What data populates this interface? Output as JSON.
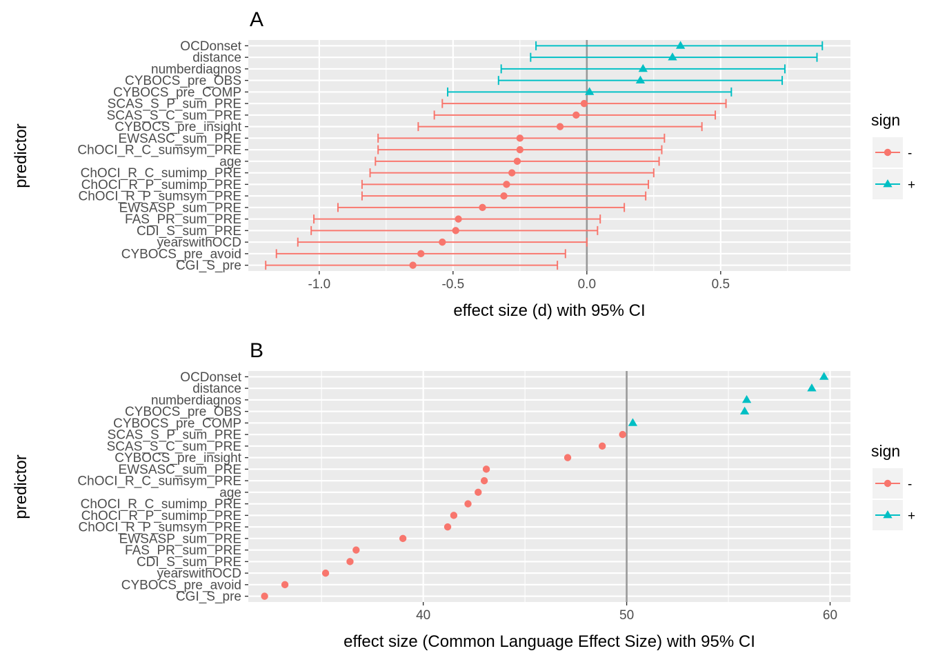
{
  "colors": {
    "negative": "#F8766D",
    "positive": "#00BFC4",
    "panel_bg": "#EBEBEB",
    "grid": "#FFFFFF",
    "zero_line": "#999999",
    "tick_text": "#4D4D4D"
  },
  "predictors": [
    "OCDonset",
    "distance",
    "numberdiagnos",
    "CYBOCS_pre_OBS",
    "CYBOCS_pre_COMP",
    "SCAS_S_P_sum_PRE",
    "SCAS_S_C_sum_PRE",
    "CYBOCS_pre_insight",
    "EWSASC_sum_PRE",
    "ChOCI_R_C_sumsym_PRE",
    "age",
    "ChOCI_R_C_sumimp_PRE",
    "ChOCI_R_P_sumimp_PRE",
    "ChOCI_R_P_sumsym_PRE",
    "EWSASP_sum_PRE",
    "FAS_PR_sum_PRE",
    "CDI_S_sum_PRE",
    "yearswithOCD",
    "CYBOCS_pre_avoid",
    "CGI_S_pre"
  ],
  "chart_data": [
    {
      "type": "scatter",
      "panel": "A",
      "xlabel": "effect size (d) with 95% CI",
      "ylabel": "predictor",
      "xlim": [
        -1.265,
        0.985
      ],
      "xticks": [
        -1.0,
        -0.5,
        0.0,
        0.5
      ],
      "xtick_labels": [
        "-1.0",
        "-0.5",
        "0.0",
        "0.5"
      ],
      "xminor": [
        -0.75,
        -0.25,
        0.25,
        0.75
      ],
      "ref_line": 0,
      "legend": {
        "title": "sign",
        "placement": "right",
        "entries": [
          "-",
          "+"
        ]
      },
      "points": [
        {
          "predictor": "OCDonset",
          "value": 0.35,
          "ci": [
            -0.19,
            0.88
          ],
          "sign": "+"
        },
        {
          "predictor": "distance",
          "value": 0.32,
          "ci": [
            -0.21,
            0.86
          ],
          "sign": "+"
        },
        {
          "predictor": "numberdiagnos",
          "value": 0.21,
          "ci": [
            -0.32,
            0.74
          ],
          "sign": "+"
        },
        {
          "predictor": "CYBOCS_pre_OBS",
          "value": 0.2,
          "ci": [
            -0.33,
            0.73
          ],
          "sign": "+"
        },
        {
          "predictor": "CYBOCS_pre_COMP",
          "value": 0.01,
          "ci": [
            -0.52,
            0.54
          ],
          "sign": "+"
        },
        {
          "predictor": "SCAS_S_P_sum_PRE",
          "value": -0.01,
          "ci": [
            -0.54,
            0.52
          ],
          "sign": "-"
        },
        {
          "predictor": "SCAS_S_C_sum_PRE",
          "value": -0.04,
          "ci": [
            -0.57,
            0.48
          ],
          "sign": "-"
        },
        {
          "predictor": "CYBOCS_pre_insight",
          "value": -0.1,
          "ci": [
            -0.63,
            0.43
          ],
          "sign": "-"
        },
        {
          "predictor": "EWSASC_sum_PRE",
          "value": -0.25,
          "ci": [
            -0.78,
            0.29
          ],
          "sign": "-"
        },
        {
          "predictor": "ChOCI_R_C_sumsym_PRE",
          "value": -0.25,
          "ci": [
            -0.78,
            0.28
          ],
          "sign": "-"
        },
        {
          "predictor": "age",
          "value": -0.26,
          "ci": [
            -0.79,
            0.27
          ],
          "sign": "-"
        },
        {
          "predictor": "ChOCI_R_C_sumimp_PRE",
          "value": -0.28,
          "ci": [
            -0.81,
            0.25
          ],
          "sign": "-"
        },
        {
          "predictor": "ChOCI_R_P_sumimp_PRE",
          "value": -0.3,
          "ci": [
            -0.84,
            0.23
          ],
          "sign": "-"
        },
        {
          "predictor": "ChOCI_R_P_sumsym_PRE",
          "value": -0.31,
          "ci": [
            -0.84,
            0.22
          ],
          "sign": "-"
        },
        {
          "predictor": "EWSASP_sum_PRE",
          "value": -0.39,
          "ci": [
            -0.93,
            0.14
          ],
          "sign": "-"
        },
        {
          "predictor": "FAS_PR_sum_PRE",
          "value": -0.48,
          "ci": [
            -1.02,
            0.05
          ],
          "sign": "-"
        },
        {
          "predictor": "CDI_S_sum_PRE",
          "value": -0.49,
          "ci": [
            -1.03,
            0.04
          ],
          "sign": "-"
        },
        {
          "predictor": "yearswithOCD",
          "value": -0.54,
          "ci": [
            -1.08,
            0.0
          ],
          "sign": "-"
        },
        {
          "predictor": "CYBOCS_pre_avoid",
          "value": -0.62,
          "ci": [
            -1.16,
            -0.08
          ],
          "sign": "-"
        },
        {
          "predictor": "CGI_S_pre",
          "value": -0.65,
          "ci": [
            -1.2,
            -0.11
          ],
          "sign": "-"
        }
      ]
    },
    {
      "type": "scatter",
      "panel": "B",
      "xlabel": "effect size (Common Language Effect Size) with 95% CI",
      "ylabel": "predictor",
      "xlim": [
        31.4,
        61.0
      ],
      "xticks": [
        40,
        50,
        60
      ],
      "xtick_labels": [
        "40",
        "50",
        "60"
      ],
      "xminor": [
        35,
        45,
        55
      ],
      "ref_line": 50,
      "legend": {
        "title": "sign",
        "placement": "right",
        "entries": [
          "-",
          "+"
        ]
      },
      "points": [
        {
          "predictor": "OCDonset",
          "value": 59.7,
          "sign": "+"
        },
        {
          "predictor": "distance",
          "value": 59.1,
          "sign": "+"
        },
        {
          "predictor": "numberdiagnos",
          "value": 55.9,
          "sign": "+"
        },
        {
          "predictor": "CYBOCS_pre_OBS",
          "value": 55.8,
          "sign": "+"
        },
        {
          "predictor": "CYBOCS_pre_COMP",
          "value": 50.3,
          "sign": "+"
        },
        {
          "predictor": "SCAS_S_P_sum_PRE",
          "value": 49.8,
          "sign": "-"
        },
        {
          "predictor": "SCAS_S_C_sum_PRE",
          "value": 48.8,
          "sign": "-"
        },
        {
          "predictor": "CYBOCS_pre_insight",
          "value": 47.1,
          "sign": "-"
        },
        {
          "predictor": "EWSASC_sum_PRE",
          "value": 43.1,
          "sign": "-"
        },
        {
          "predictor": "ChOCI_R_C_sumsym_PRE",
          "value": 43.0,
          "sign": "-"
        },
        {
          "predictor": "age",
          "value": 42.7,
          "sign": "-"
        },
        {
          "predictor": "ChOCI_R_C_sumimp_PRE",
          "value": 42.2,
          "sign": "-"
        },
        {
          "predictor": "ChOCI_R_P_sumimp_PRE",
          "value": 41.5,
          "sign": "-"
        },
        {
          "predictor": "ChOCI_R_P_sumsym_PRE",
          "value": 41.2,
          "sign": "-"
        },
        {
          "predictor": "EWSASP_sum_PRE",
          "value": 39.0,
          "sign": "-"
        },
        {
          "predictor": "FAS_PR_sum_PRE",
          "value": 36.7,
          "sign": "-"
        },
        {
          "predictor": "CDI_S_sum_PRE",
          "value": 36.4,
          "sign": "-"
        },
        {
          "predictor": "yearswithOCD",
          "value": 35.2,
          "sign": "-"
        },
        {
          "predictor": "CYBOCS_pre_avoid",
          "value": 33.2,
          "sign": "-"
        },
        {
          "predictor": "CGI_S_pre",
          "value": 32.2,
          "sign": "-"
        }
      ]
    }
  ]
}
